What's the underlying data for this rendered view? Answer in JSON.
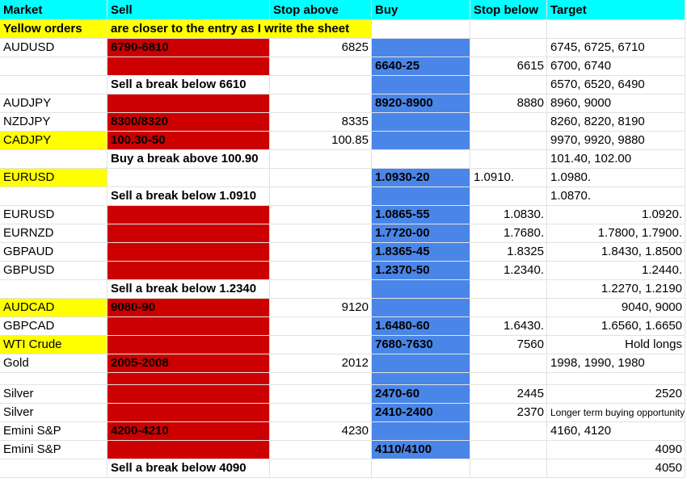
{
  "header": [
    "Market",
    "Sell",
    "Stop above",
    "Buy",
    "Stop below",
    "Target"
  ],
  "rows": [
    {
      "market": "Yellow orders",
      "sell": "are closer to the entry as I write the sheet"
    },
    {
      "market": "AUDUSD",
      "sell": "6790-6810",
      "stop_above": "6825",
      "target": "6745, 6725, 6710"
    },
    {
      "buy": "6640-25",
      "stop_below": "6615",
      "target": "6700, 6740"
    },
    {
      "sell": "Sell a break below 6610",
      "target": "6570, 6520, 6490"
    },
    {
      "market": "AUDJPY",
      "buy": "8920-8900",
      "stop_below": "8880",
      "target": "8960, 9000"
    },
    {
      "market": "NZDJPY",
      "sell": "8300/8320",
      "stop_above": "8335",
      "target": "8260, 8220, 8190"
    },
    {
      "market": "CADJPY",
      "sell": "100.30-50",
      "stop_above": "100.85",
      "target": "9970, 9920, 9880"
    },
    {
      "sell": "Buy a break above 100.90",
      "target": "101.40, 102.00"
    },
    {
      "market": "EURUSD",
      "buy": "1.0930-20",
      "stop_below": "1.0910.",
      "target": "1.0980."
    },
    {
      "sell": "Sell a break below 1.0910",
      "target": "1.0870."
    },
    {
      "market": "EURUSD",
      "buy": "1.0865-55",
      "stop_below": "1.0830.",
      "target": "1.0920."
    },
    {
      "market": "EURNZD",
      "buy": "1.7720-00",
      "stop_below": "1.7680.",
      "target": "1.7800, 1.7900."
    },
    {
      "market": "GBPAUD",
      "buy": "1.8365-45",
      "stop_below": "1.8325",
      "target": "1.8430, 1.8500"
    },
    {
      "market": "GBPUSD",
      "buy": "1.2370-50",
      "stop_below": "1.2340.",
      "target": "1.2440."
    },
    {
      "sell": "Sell a break below 1.2340",
      "target": "1.2270, 1.2190"
    },
    {
      "market": "AUDCAD",
      "sell": "9080-90",
      "stop_above": "9120",
      "target": "9040, 9000"
    },
    {
      "market": "GBPCAD",
      "buy": "1.6480-60",
      "stop_below": "1.6430.",
      "target": "1.6560, 1.6650"
    },
    {
      "market": "WTI Crude",
      "buy": "7680-7630",
      "stop_below": "7560",
      "target": "Hold longs"
    },
    {
      "market": "Gold",
      "sell": "2005-2008",
      "stop_above": "2012",
      "target": "1998, 1990, 1980"
    },
    {},
    {
      "market": "Silver",
      "buy": "2470-60",
      "stop_below": "2445",
      "target": "2520"
    },
    {
      "market": "Silver",
      "buy": "2410-2400",
      "stop_below": "2370",
      "target": "Longer term buying opportunity"
    },
    {
      "market": "Emini S&P",
      "sell": "4200-4210",
      "stop_above": "4230",
      "target": "4160, 4120"
    },
    {
      "market": "Emini S&P",
      "buy": "4110/4100",
      "target": "4090"
    },
    {
      "sell": "Sell a break below 4090",
      "target": "4050"
    }
  ]
}
